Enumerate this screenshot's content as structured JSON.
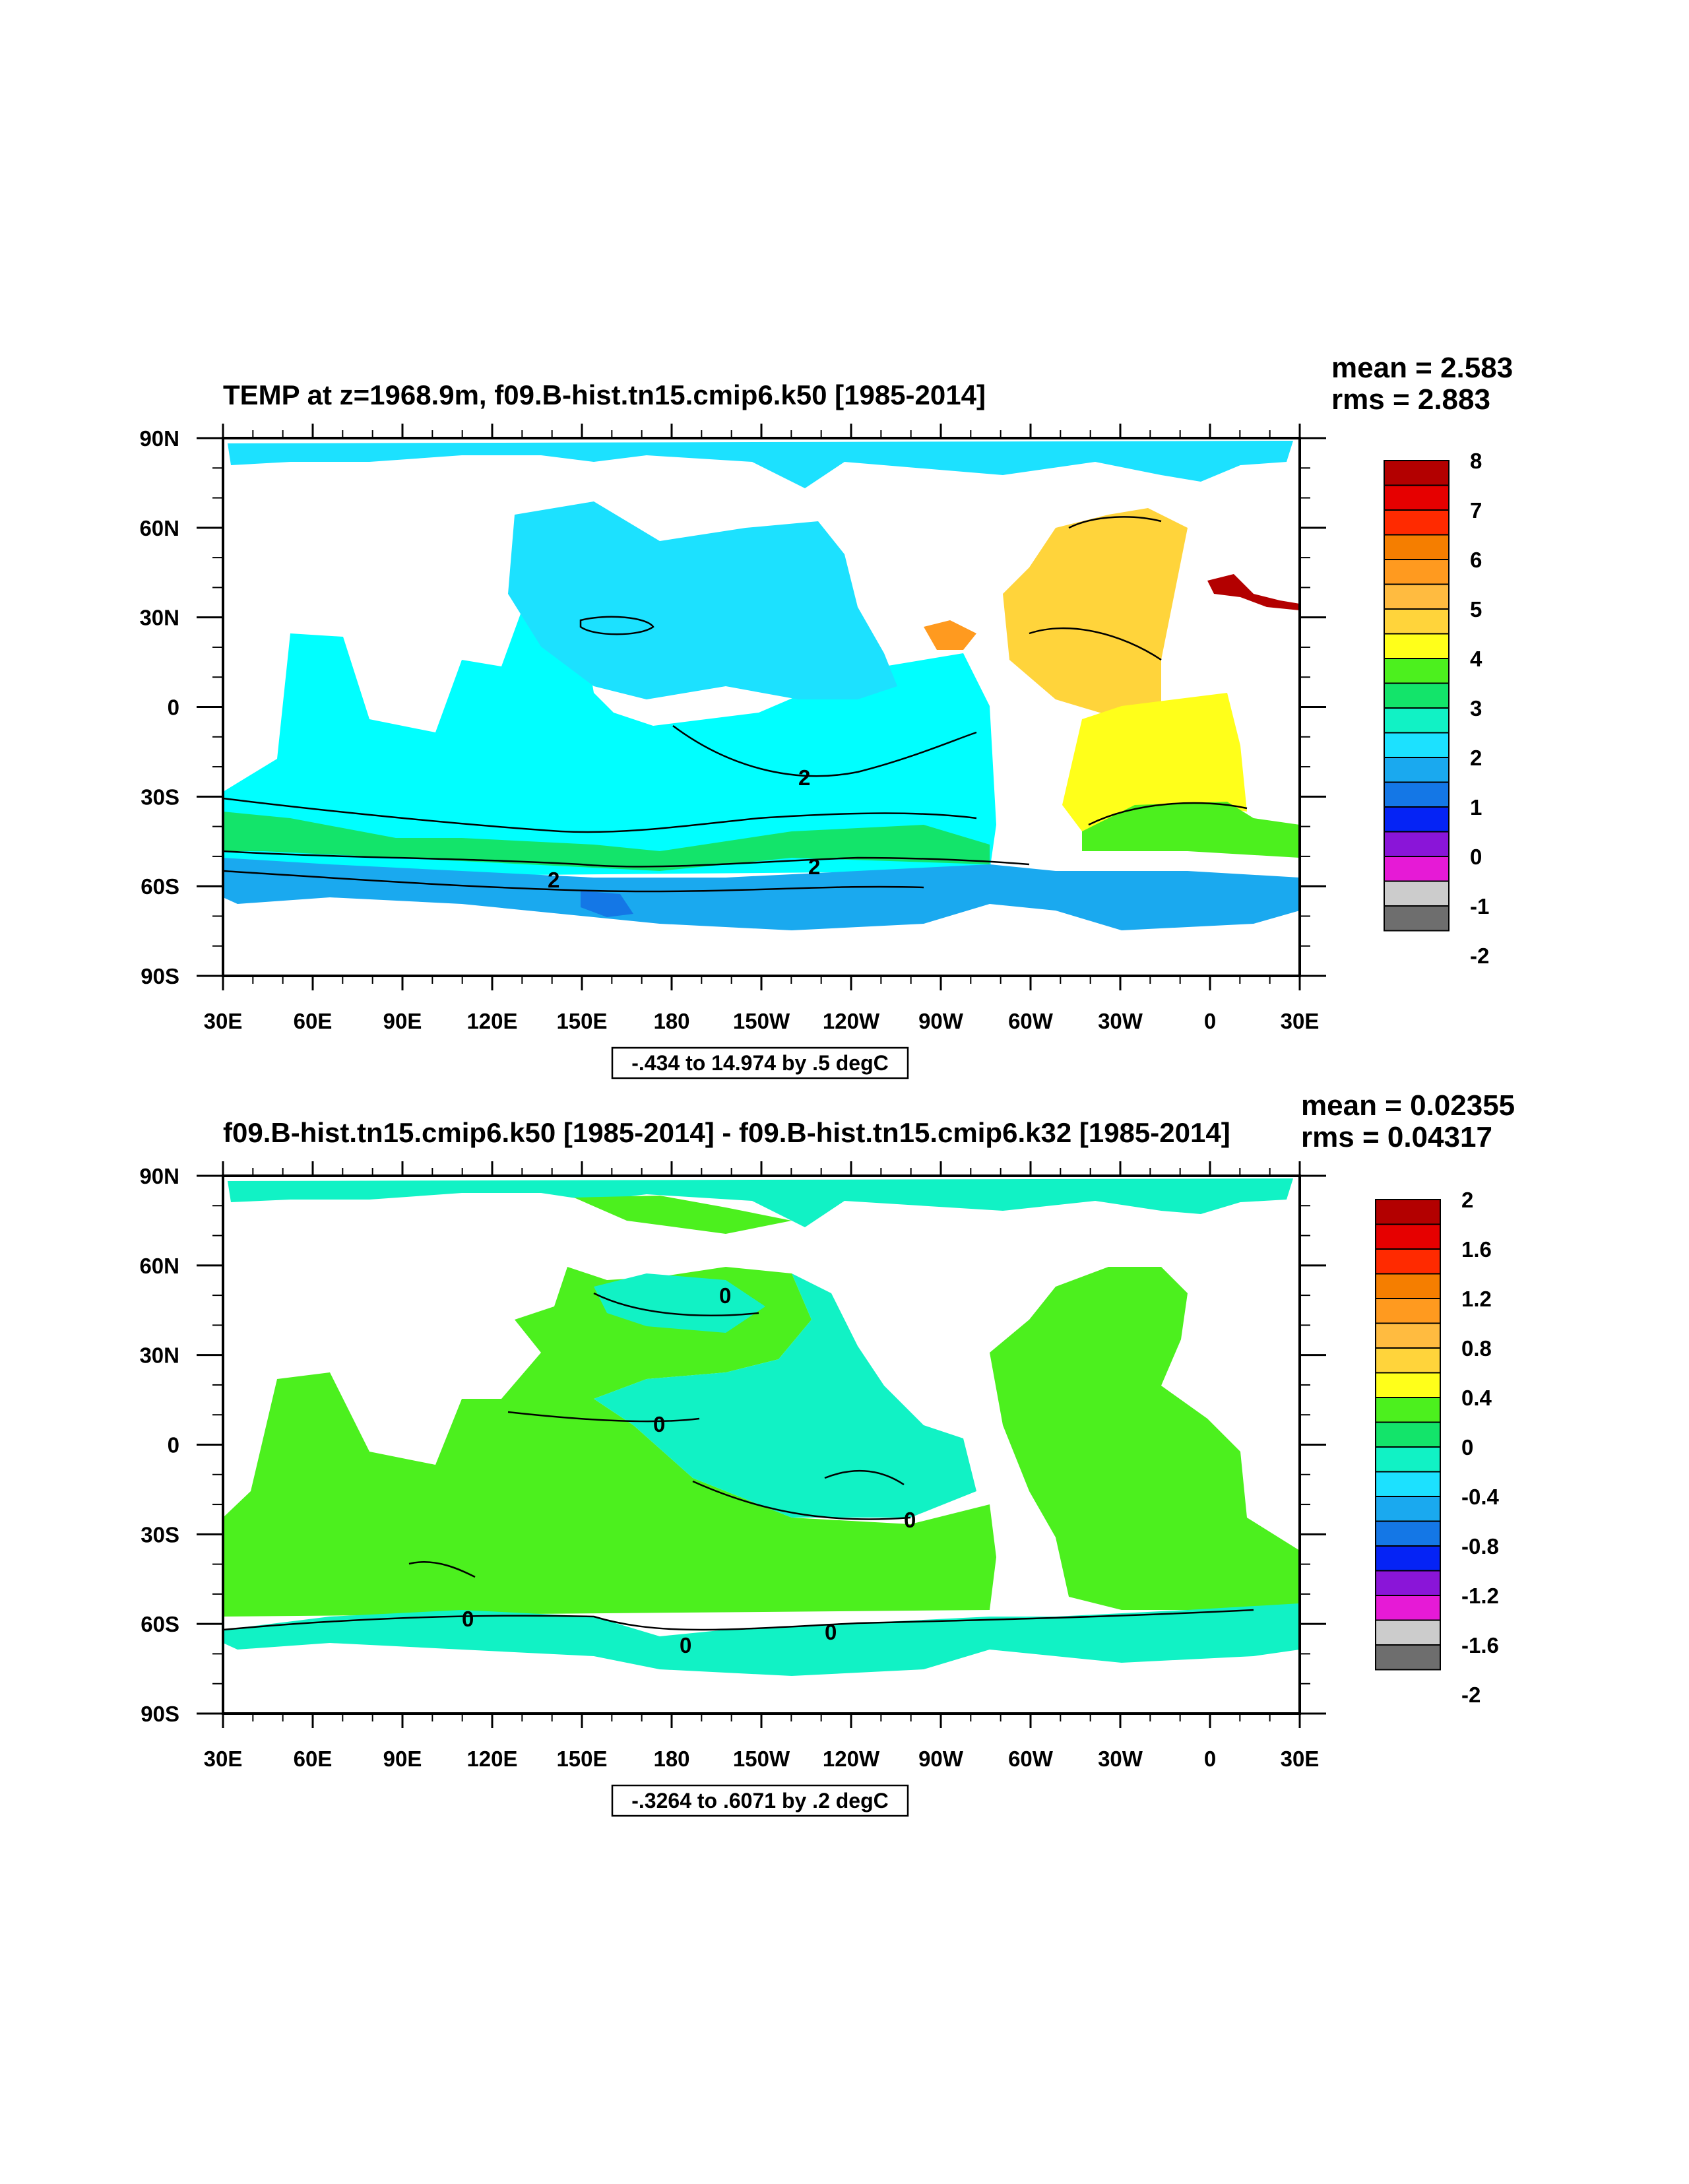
{
  "panels": [
    {
      "title": "TEMP at z=1968.9m, f09.B-hist.tn15.cmip6.k50 [1985-2014]",
      "mean": "mean = 2.583",
      "rms": "rms = 2.883",
      "range_label": "-.434 to 14.974 by .5 degC",
      "contour_labels": [
        "2",
        "2",
        "2"
      ],
      "colorbar": {
        "labels": [
          "8",
          "7",
          "6",
          "5",
          "4",
          "3",
          "2",
          "1",
          "0",
          "-1",
          "-2"
        ],
        "colors": [
          "#b30000",
          "#e60000",
          "#ff2a00",
          "#f57e00",
          "#ff9a1f",
          "#ffbb40",
          "#ffd43b",
          "#ffff1a",
          "#4cf01e",
          "#13e46a",
          "#11f2c5",
          "#1ce1ff",
          "#1aa9ef",
          "#1477e6",
          "#0523f5",
          "#8a15d8",
          "#e61ad6",
          "#cccccc",
          "#6e6e6e"
        ]
      }
    },
    {
      "title": "f09.B-hist.tn15.cmip6.k50 [1985-2014] - f09.B-hist.tn15.cmip6.k32 [1985-2014]",
      "mean": "mean = 0.02355",
      "rms": "rms = 0.04317",
      "range_label": "-.3264 to .6071 by .2 degC",
      "contour_labels": [
        "0",
        "0",
        "0",
        "0",
        "0",
        "0"
      ],
      "colorbar": {
        "labels": [
          "2",
          "1.6",
          "1.2",
          "0.8",
          "0.4",
          "0",
          "-0.4",
          "-0.8",
          "-1.2",
          "-1.6",
          "-2"
        ],
        "colors": [
          "#b30000",
          "#e60000",
          "#ff2a00",
          "#f57e00",
          "#ff9a1f",
          "#ffbb40",
          "#ffd43b",
          "#ffff1a",
          "#4cf01e",
          "#13e46a",
          "#11f2c5",
          "#1ce1ff",
          "#1aa9ef",
          "#1477e6",
          "#0523f5",
          "#8a15d8",
          "#e61ad6",
          "#cccccc",
          "#6e6e6e"
        ]
      }
    }
  ],
  "axes": {
    "x_ticks": [
      "30E",
      "60E",
      "90E",
      "120E",
      "150E",
      "180",
      "150W",
      "120W",
      "90W",
      "60W",
      "30W",
      "0",
      "30E"
    ],
    "y_ticks": [
      "90N",
      "60N",
      "30N",
      "0",
      "30S",
      "60S",
      "90S"
    ]
  },
  "fill_colors": {
    "white_land": "#ffffff",
    "panel1_main": "#00ffff",
    "panel1_pacific": "#1ce1ff",
    "panel1_atlantic_north": "#ffd43b",
    "panel1_atlantic_south": "#ffff1a",
    "panel1_south_band": "#13e46a",
    "panel1_south_deep": "#1aa9ef",
    "panel2_main": "#4cf01e",
    "panel2_alt": "#11f2c5"
  }
}
